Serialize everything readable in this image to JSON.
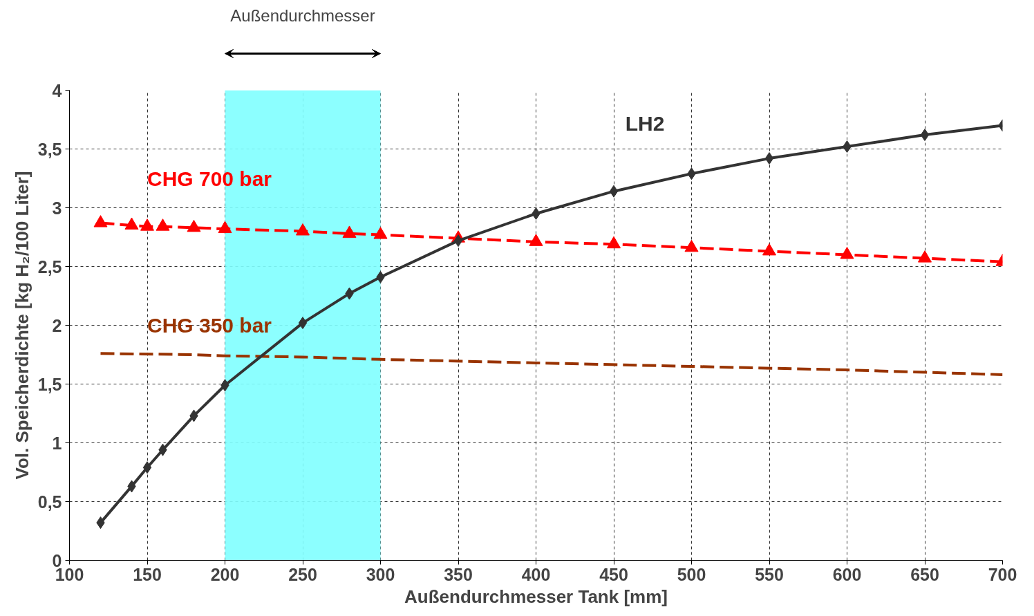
{
  "chart_data": {
    "type": "line",
    "xlabel": "Außendurchmesser Tank [mm]",
    "ylabel": "Vol. Speicherdichte [kg H₂/100 Liter]",
    "xlim": [
      100,
      700
    ],
    "xticks": [
      100,
      150,
      200,
      250,
      300,
      350,
      400,
      450,
      500,
      550,
      600,
      650,
      700
    ],
    "ylim": [
      0,
      4
    ],
    "yticks": [
      0,
      {
        "value": 0.5,
        "label": "0,5"
      },
      1,
      {
        "value": 1.5,
        "label": "1,5"
      },
      2,
      {
        "value": 2.5,
        "label": "2,5"
      },
      3,
      {
        "value": 3.5,
        "label": "3,5"
      },
      4
    ],
    "grid": true,
    "legend": false,
    "bands": [
      {
        "axis": "x",
        "from": 200,
        "to": 300,
        "color": "#80ffff"
      }
    ],
    "annotations": [
      "Außendurchmesser"
    ],
    "series": [
      {
        "name": "LH2",
        "color": "#333333",
        "marker": "diamond",
        "line_style": "solid",
        "x": [
          120,
          140,
          150,
          160,
          180,
          200,
          250,
          280,
          300,
          350,
          400,
          450,
          500,
          550,
          600,
          650,
          700
        ],
        "values": [
          0.32,
          0.63,
          0.79,
          0.94,
          1.23,
          1.49,
          2.02,
          2.27,
          2.41,
          2.72,
          2.95,
          3.14,
          3.29,
          3.42,
          3.52,
          3.62,
          3.7
        ]
      },
      {
        "name": "CHG 700 bar",
        "color": "#ff0000",
        "marker": "triangle",
        "line_style": "dashed",
        "x": [
          120,
          140,
          150,
          160,
          180,
          200,
          250,
          280,
          300,
          350,
          400,
          450,
          500,
          550,
          600,
          650,
          700
        ],
        "values": [
          2.87,
          2.85,
          2.84,
          2.84,
          2.83,
          2.82,
          2.8,
          2.78,
          2.77,
          2.74,
          2.71,
          2.69,
          2.66,
          2.63,
          2.6,
          2.57,
          2.54
        ]
      },
      {
        "name": "CHG 350 bar",
        "color": "#993300",
        "marker": "none",
        "line_style": "dashed",
        "x": [
          120,
          180,
          200,
          250,
          300,
          400,
          500,
          600,
          700
        ],
        "values": [
          1.76,
          1.75,
          1.74,
          1.73,
          1.71,
          1.68,
          1.65,
          1.62,
          1.58
        ]
      }
    ]
  }
}
